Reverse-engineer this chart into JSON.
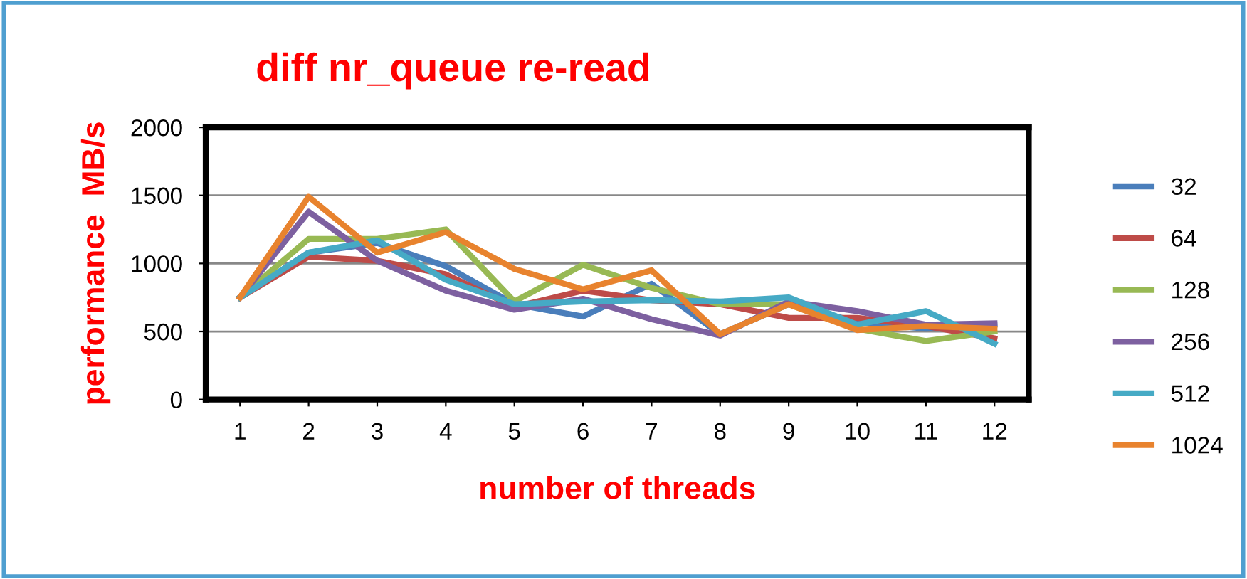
{
  "chart_data": {
    "type": "line",
    "title": "diff nr_queue re-read",
    "xlabel": "number of threads",
    "ylabel": "performance  MB/s",
    "categories": [
      "1",
      "2",
      "3",
      "4",
      "5",
      "6",
      "7",
      "8",
      "9",
      "10",
      "11",
      "12"
    ],
    "series": [
      {
        "name": "32",
        "color": "#4a7ebb",
        "values": [
          750,
          1080,
          1150,
          980,
          700,
          610,
          850,
          480,
          700,
          570,
          520,
          550
        ]
      },
      {
        "name": "64",
        "color": "#be4b48",
        "values": [
          750,
          1050,
          1020,
          920,
          680,
          800,
          730,
          700,
          600,
          600,
          540,
          450
        ]
      },
      {
        "name": "128",
        "color": "#98b954",
        "values": [
          750,
          1180,
          1180,
          1250,
          720,
          990,
          820,
          700,
          700,
          520,
          430,
          500
        ]
      },
      {
        "name": "256",
        "color": "#7d60a0",
        "values": [
          750,
          1380,
          1020,
          800,
          660,
          740,
          590,
          470,
          720,
          650,
          550,
          560
        ]
      },
      {
        "name": "512",
        "color": "#46aac5",
        "values": [
          750,
          1080,
          1170,
          880,
          700,
          720,
          730,
          720,
          750,
          550,
          650,
          410
        ]
      },
      {
        "name": "1024",
        "color": "#e8832e",
        "values": [
          750,
          1490,
          1080,
          1230,
          960,
          810,
          950,
          480,
          700,
          510,
          540,
          520
        ]
      }
    ],
    "ylim": [
      0,
      2000
    ],
    "yticks": [
      0,
      500,
      1000,
      1500,
      2000
    ],
    "grid": "y",
    "legend": "right",
    "marker": "none",
    "line_style": "solid"
  }
}
